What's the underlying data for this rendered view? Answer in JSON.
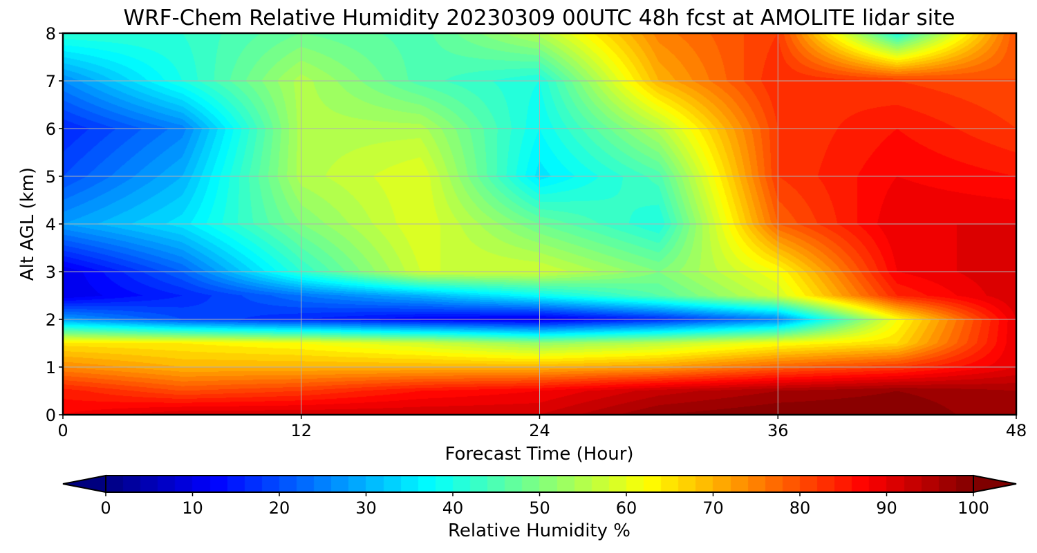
{
  "chart_data": {
    "type": "heatmap",
    "title": "WRF-Chem Relative Humidity 20230309 00UTC 48h fcst at AMOLITE lidar site",
    "xlabel": "Forecast Time (Hour)",
    "ylabel": "Alt AGL (km)",
    "xlim": [
      0,
      48
    ],
    "ylim": [
      0,
      8
    ],
    "x_ticks": [
      "0",
      "12",
      "24",
      "36",
      "48"
    ],
    "y_ticks": [
      "0",
      "1",
      "2",
      "3",
      "4",
      "5",
      "6",
      "7",
      "8"
    ],
    "grid": true,
    "colormap": "jet",
    "x": [
      0,
      6,
      12,
      18,
      24,
      30,
      36,
      42,
      48
    ],
    "y": [
      0,
      0.5,
      1,
      1.5,
      2,
      2.5,
      3,
      4,
      5,
      6,
      7,
      8
    ],
    "z_units": "Relative Humidity %",
    "z": [
      [
        88,
        92,
        92,
        92,
        92,
        98,
        100,
        100,
        96
      ],
      [
        85,
        80,
        82,
        86,
        88,
        93,
        96,
        98,
        96
      ],
      [
        74,
        70,
        70,
        70,
        70,
        72,
        78,
        82,
        90
      ],
      [
        65,
        64,
        62,
        58,
        52,
        56,
        62,
        66,
        90
      ],
      [
        28,
        20,
        16,
        12,
        10,
        16,
        25,
        62,
        90
      ],
      [
        10,
        16,
        24,
        30,
        38,
        46,
        58,
        84,
        92
      ],
      [
        10,
        22,
        42,
        58,
        58,
        50,
        62,
        88,
        92
      ],
      [
        28,
        35,
        50,
        60,
        48,
        40,
        78,
        90,
        90
      ],
      [
        20,
        30,
        55,
        60,
        35,
        45,
        82,
        88,
        86
      ],
      [
        16,
        25,
        55,
        55,
        38,
        55,
        82,
        86,
        82
      ],
      [
        26,
        40,
        55,
        45,
        40,
        70,
        84,
        82,
        80
      ],
      [
        42,
        42,
        48,
        45,
        55,
        75,
        82,
        40,
        80
      ]
    ],
    "colorbar": {
      "label": "Relative Humidity %",
      "ticks": [
        "0",
        "10",
        "20",
        "30",
        "40",
        "50",
        "60",
        "70",
        "80",
        "90",
        "100"
      ],
      "range": [
        0,
        100
      ],
      "extend": "both"
    }
  }
}
